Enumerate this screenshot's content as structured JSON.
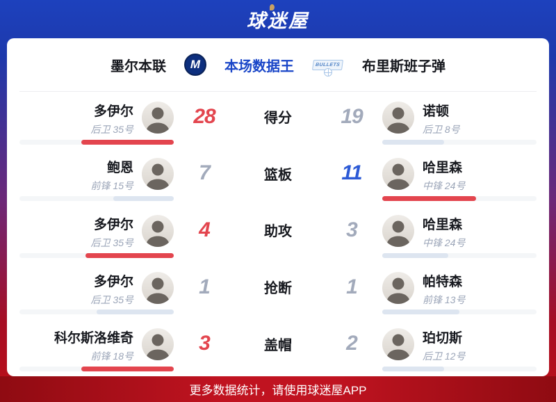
{
  "app": {
    "logo_text": "球迷屋",
    "footer_text": "更多数据统计，请使用球迷屋APP"
  },
  "header": {
    "left_team": "墨尔本联",
    "left_logo_letter": "M",
    "title": "本场数据王",
    "right_logo_text": "BULLETS",
    "right_team": "布里斯班子弹"
  },
  "colors": {
    "red": "#e3454e",
    "blue": "#2c5ad6",
    "gray": "#a2aabb",
    "lightblue": "#dde5f0",
    "track": "#f4f6f8",
    "title_blue": "#1a46c8",
    "footer_red": "#c01320",
    "header_blue": "#1d41bd"
  },
  "rows": [
    {
      "stat": "得分",
      "left": {
        "name": "多伊尔",
        "info": "后卫 35号",
        "value": "28",
        "value_color": "red",
        "bar_color": "red",
        "bar_pct": 60
      },
      "right": {
        "name": "诺顿",
        "info": "后卫 8号",
        "value": "19",
        "value_color": "gray",
        "bar_color": "lightblue",
        "bar_pct": 40
      }
    },
    {
      "stat": "篮板",
      "left": {
        "name": "鲍恩",
        "info": "前锋 15号",
        "value": "7",
        "value_color": "gray",
        "bar_color": "lightblue",
        "bar_pct": 39
      },
      "right": {
        "name": "哈里森",
        "info": "中锋 24号",
        "value": "11",
        "value_color": "blue",
        "bar_color": "red",
        "bar_pct": 61
      }
    },
    {
      "stat": "助攻",
      "left": {
        "name": "多伊尔",
        "info": "后卫 35号",
        "value": "4",
        "value_color": "red",
        "bar_color": "red",
        "bar_pct": 57
      },
      "right": {
        "name": "哈里森",
        "info": "中锋 24号",
        "value": "3",
        "value_color": "gray",
        "bar_color": "lightblue",
        "bar_pct": 43
      }
    },
    {
      "stat": "抢断",
      "left": {
        "name": "多伊尔",
        "info": "后卫 35号",
        "value": "1",
        "value_color": "gray",
        "bar_color": "lightblue",
        "bar_pct": 50
      },
      "right": {
        "name": "帕特森",
        "info": "前锋 13号",
        "value": "1",
        "value_color": "gray",
        "bar_color": "lightblue",
        "bar_pct": 50
      }
    },
    {
      "stat": "盖帽",
      "left": {
        "name": "科尔斯洛维奇",
        "info": "前锋 18号",
        "value": "3",
        "value_color": "red",
        "bar_color": "red",
        "bar_pct": 60
      },
      "right": {
        "name": "珀切斯",
        "info": "后卫 12号",
        "value": "2",
        "value_color": "gray",
        "bar_color": "lightblue",
        "bar_pct": 40
      }
    }
  ]
}
